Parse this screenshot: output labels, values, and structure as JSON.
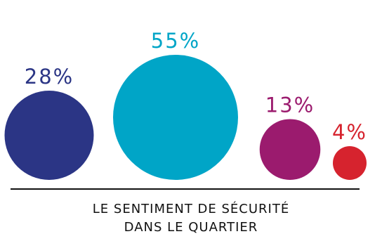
{
  "chart_data": {
    "type": "bubble",
    "title_lines": [
      "LE SENTIMENT DE SÉCURITÉ",
      "DANS LE QUARTIER"
    ],
    "bubbles": [
      {
        "value": 28,
        "label": "28%",
        "color": "#2b3585"
      },
      {
        "value": 55,
        "label": "55%",
        "color": "#00a5c7"
      },
      {
        "value": 13,
        "label": "13%",
        "color": "#9b1b6e"
      },
      {
        "value": 4,
        "label": "4%",
        "color": "#d6232e"
      }
    ]
  }
}
